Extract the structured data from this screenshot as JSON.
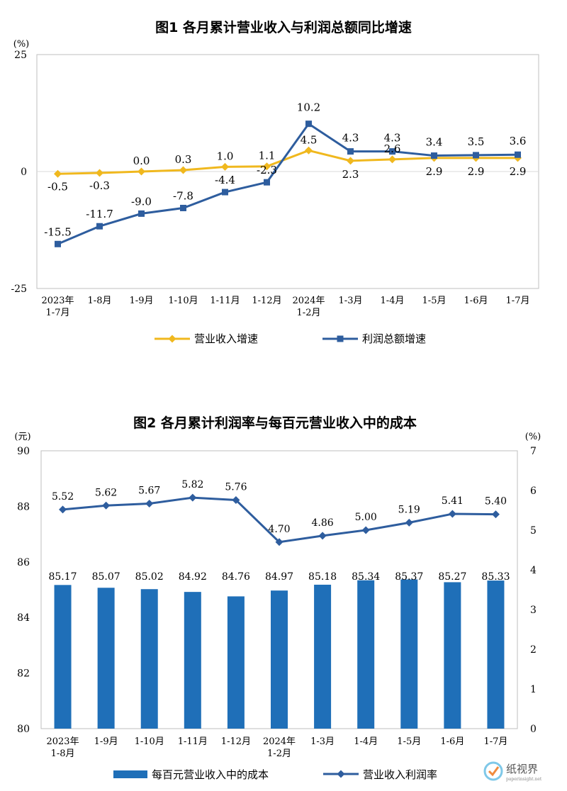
{
  "watermark": {
    "name": "纸视界",
    "url": "paperinsight.net"
  },
  "chart_data": [
    {
      "type": "line",
      "title": "图1  各月累计营业收入与利润总额同比增速",
      "ylabel": "(%)",
      "ylim": [
        -25,
        25
      ],
      "yticks": [
        "25",
        "0",
        "-25"
      ],
      "categories": [
        [
          "2023年",
          "1-7月"
        ],
        [
          "1-8月"
        ],
        [
          "1-9月"
        ],
        [
          "1-10月"
        ],
        [
          "1-11月"
        ],
        [
          "1-12月"
        ],
        [
          "2024年",
          "1-2月"
        ],
        [
          "1-3月"
        ],
        [
          "1-4月"
        ],
        [
          "1-5月"
        ],
        [
          "1-6月"
        ],
        [
          "1-7月"
        ]
      ],
      "series": [
        {
          "name": "营业收入增速",
          "color": "#f0b81e",
          "marker": "diamond",
          "values": [
            -0.5,
            -0.3,
            0.0,
            0.3,
            1.0,
            1.1,
            4.5,
            2.3,
            2.6,
            2.9,
            2.9,
            2.9
          ],
          "labels": [
            "-0.5",
            "-0.3",
            "0.0",
            "0.3",
            "1.0",
            "1.1",
            "4.5",
            "2.3",
            "2.6",
            "2.9",
            "2.9",
            "2.9"
          ]
        },
        {
          "name": "利润总额增速",
          "color": "#2e5d9e",
          "marker": "square",
          "values": [
            -15.5,
            -11.7,
            -9.0,
            -7.8,
            -4.4,
            -2.3,
            10.2,
            4.3,
            4.3,
            3.4,
            3.5,
            3.6
          ],
          "labels": [
            "-15.5",
            "-11.7",
            "-9.0",
            "-7.8",
            "-4.4",
            "-2.3",
            "10.2",
            "4.3",
            "4.3",
            "3.4",
            "3.5",
            "3.6"
          ]
        }
      ],
      "grid": false,
      "legend": "bottom"
    },
    {
      "type": "bar",
      "title": "图2  各月累计利润率与每百元营业收入中的成本",
      "ylabel_left": "(元)",
      "ylabel_right": "(%)",
      "ylim_left": [
        80,
        90
      ],
      "ylim_right": [
        0,
        7
      ],
      "yticks_left": [
        "90",
        "88",
        "86",
        "84",
        "82",
        "80"
      ],
      "yticks_right": [
        "7",
        "6",
        "5",
        "4",
        "3",
        "2",
        "1",
        "0"
      ],
      "categories": [
        [
          "2023年",
          "1-8月"
        ],
        [
          "1-9月"
        ],
        [
          "1-10月"
        ],
        [
          "1-11月"
        ],
        [
          "1-12月"
        ],
        [
          "2024年",
          "1-2月"
        ],
        [
          "1-3月"
        ],
        [
          "1-4月"
        ],
        [
          "1-5月"
        ],
        [
          "1-6月"
        ],
        [
          "1-7月"
        ]
      ],
      "series": [
        {
          "name": "每百元营业收入中的成本",
          "type": "bar",
          "axis": "left",
          "color": "#1f6fb8",
          "values": [
            85.17,
            85.07,
            85.02,
            84.92,
            84.76,
            84.97,
            85.18,
            85.34,
            85.37,
            85.27,
            85.33
          ],
          "labels": [
            "85.17",
            "85.07",
            "85.02",
            "84.92",
            "84.76",
            "84.97",
            "85.18",
            "85.34",
            "85.37",
            "85.27",
            "85.33"
          ]
        },
        {
          "name": "营业收入利润率",
          "type": "line",
          "axis": "right",
          "color": "#2e5d9e",
          "marker": "diamond",
          "values": [
            5.52,
            5.62,
            5.67,
            5.82,
            5.76,
            4.7,
            4.86,
            5.0,
            5.19,
            5.41,
            5.4
          ],
          "labels": [
            "5.52",
            "5.62",
            "5.67",
            "5.82",
            "5.76",
            "4.70",
            "4.86",
            "5.00",
            "5.19",
            "5.41",
            "5.40"
          ]
        }
      ],
      "grid": false,
      "legend": "bottom"
    }
  ]
}
